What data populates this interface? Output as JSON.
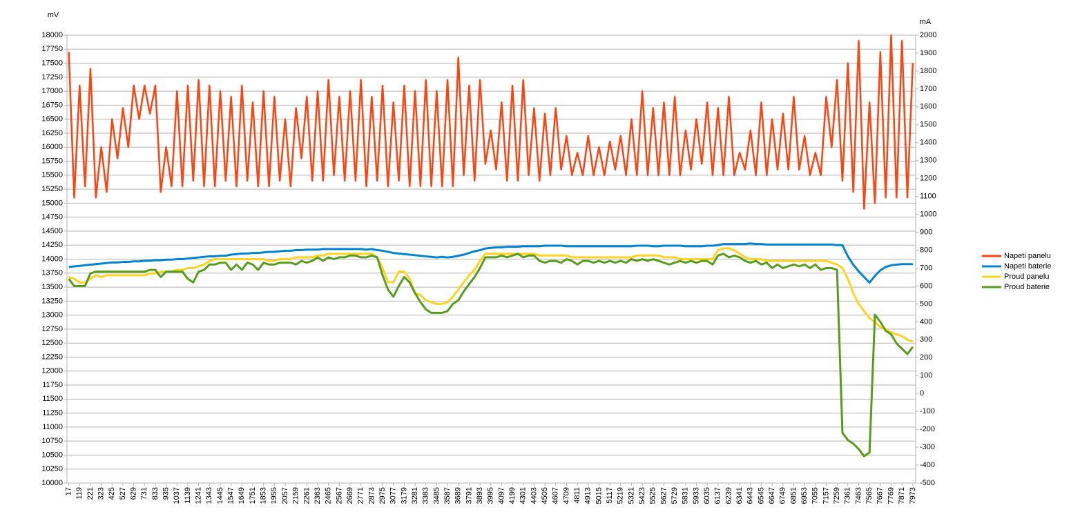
{
  "chart_data": {
    "type": "line",
    "y_label": "mV",
    "y2_label": "mA",
    "legend": "right",
    "grid": true,
    "xlim": [
      0,
      8000
    ],
    "xticks": [
      17,
      119,
      221,
      323,
      425,
      527,
      629,
      731,
      833,
      935,
      1037,
      1139,
      1241,
      1343,
      1445,
      1547,
      1649,
      1751,
      1853,
      1955,
      2057,
      2159,
      2261,
      2363,
      2465,
      2567,
      2669,
      2771,
      2873,
      2975,
      3077,
      3179,
      3281,
      3383,
      3485,
      3587,
      3689,
      3791,
      3893,
      3995,
      4097,
      4199,
      4301,
      4403,
      4505,
      4607,
      4709,
      4811,
      4913,
      5015,
      5117,
      5219,
      5321,
      5423,
      5525,
      5627,
      5729,
      5831,
      5933,
      6035,
      6137,
      6239,
      6341,
      6443,
      6545,
      6647,
      6749,
      6851,
      6953,
      7055,
      7157,
      7259,
      7361,
      7463,
      7565,
      7667,
      7769,
      7871,
      7973
    ],
    "ylim": [
      10000,
      18000
    ],
    "yticks": [
      10000,
      10250,
      10500,
      10750,
      11000,
      11250,
      11500,
      11750,
      12000,
      12250,
      12500,
      12750,
      13000,
      13250,
      13500,
      13750,
      14000,
      14250,
      14500,
      14750,
      15000,
      15250,
      15500,
      15750,
      16000,
      16250,
      16500,
      16750,
      17000,
      17250,
      17500,
      17750,
      18000
    ],
    "y2lim": [
      -500,
      2000
    ],
    "y2ticks": [
      -500,
      -400,
      -300,
      -200,
      -100,
      0,
      100,
      200,
      300,
      400,
      500,
      600,
      700,
      800,
      900,
      1000,
      1100,
      1200,
      1300,
      1400,
      1500,
      1600,
      1700,
      1800,
      1900,
      2000
    ],
    "x": [
      17,
      68,
      119,
      170,
      221,
      272,
      323,
      374,
      425,
      476,
      527,
      578,
      629,
      680,
      731,
      782,
      833,
      884,
      935,
      986,
      1037,
      1088,
      1139,
      1190,
      1241,
      1292,
      1343,
      1394,
      1445,
      1496,
      1547,
      1598,
      1649,
      1700,
      1751,
      1802,
      1853,
      1904,
      1955,
      2006,
      2057,
      2108,
      2159,
      2210,
      2261,
      2312,
      2363,
      2414,
      2465,
      2516,
      2567,
      2618,
      2669,
      2720,
      2771,
      2822,
      2873,
      2924,
      2975,
      3026,
      3077,
      3128,
      3179,
      3230,
      3281,
      3332,
      3383,
      3434,
      3485,
      3536,
      3587,
      3638,
      3689,
      3740,
      3791,
      3842,
      3893,
      3944,
      3995,
      4046,
      4097,
      4148,
      4199,
      4250,
      4301,
      4352,
      4403,
      4454,
      4505,
      4556,
      4607,
      4658,
      4709,
      4760,
      4811,
      4862,
      4913,
      4964,
      5015,
      5066,
      5117,
      5168,
      5219,
      5270,
      5321,
      5372,
      5423,
      5474,
      5525,
      5576,
      5627,
      5678,
      5729,
      5780,
      5831,
      5882,
      5933,
      5984,
      6035,
      6086,
      6137,
      6188,
      6239,
      6290,
      6341,
      6392,
      6443,
      6494,
      6545,
      6596,
      6647,
      6698,
      6749,
      6800,
      6851,
      6902,
      6953,
      7004,
      7055,
      7106,
      7157,
      7208,
      7259,
      7310,
      7361,
      7412,
      7463,
      7514,
      7565,
      7616,
      7667,
      7718,
      7769,
      7820,
      7871,
      7922,
      7973
    ],
    "series": [
      {
        "name": "Napeti panelu",
        "color": "#ff420e",
        "values": [
          17700,
          15100,
          17100,
          15300,
          17400,
          15100,
          16000,
          15200,
          16500,
          15800,
          16700,
          16000,
          17100,
          16500,
          17100,
          16600,
          17100,
          15200,
          16000,
          15300,
          17000,
          15300,
          17100,
          15400,
          17200,
          15300,
          17100,
          15300,
          17000,
          15400,
          16900,
          15300,
          17100,
          15400,
          16800,
          15300,
          17000,
          15300,
          16900,
          15400,
          16500,
          15300,
          16700,
          15800,
          16900,
          15400,
          17000,
          15400,
          17200,
          15500,
          16900,
          15400,
          17000,
          15400,
          17200,
          15300,
          16900,
          15400,
          17100,
          15300,
          16800,
          15400,
          17100,
          15300,
          17000,
          15300,
          17200,
          15300,
          17000,
          15300,
          17200,
          15300,
          17600,
          15500,
          17100,
          15400,
          17200,
          15700,
          16300,
          15600,
          16800,
          15400,
          17100,
          15400,
          17200,
          15500,
          16700,
          15400,
          16600,
          15500,
          16700,
          15600,
          16200,
          15500,
          15900,
          15500,
          16200,
          15500,
          16000,
          15500,
          16100,
          15600,
          16200,
          15500,
          16500,
          15500,
          17000,
          15500,
          16700,
          15500,
          16800,
          15500,
          16900,
          15500,
          16300,
          15600,
          16500,
          15700,
          16800,
          15500,
          16700,
          15500,
          16900,
          15500,
          15900,
          15600,
          16300,
          15500,
          16800,
          15500,
          16500,
          15600,
          16600,
          15600,
          16900,
          15600,
          16200,
          15500,
          15900,
          15500,
          16900,
          16000,
          17200,
          15400,
          17500,
          15200,
          17900,
          14900,
          16800,
          15000,
          17700,
          15100,
          18000,
          15100,
          17900,
          15100,
          17500
        ]
      },
      {
        "name": "Napeti baterie",
        "color": "#0084d1",
        "values": [
          13860,
          13870,
          13880,
          13890,
          13900,
          13910,
          13920,
          13930,
          13940,
          13940,
          13950,
          13950,
          13960,
          13960,
          13970,
          13970,
          13980,
          13980,
          13990,
          13990,
          14000,
          14000,
          14010,
          14020,
          14030,
          14040,
          14050,
          14050,
          14060,
          14060,
          14080,
          14090,
          14100,
          14100,
          14110,
          14110,
          14120,
          14130,
          14130,
          14140,
          14150,
          14150,
          14160,
          14160,
          14170,
          14170,
          14170,
          14180,
          14180,
          14180,
          14180,
          14180,
          14180,
          14180,
          14180,
          14170,
          14180,
          14160,
          14150,
          14130,
          14110,
          14100,
          14090,
          14080,
          14070,
          14060,
          14050,
          14040,
          14030,
          14040,
          14030,
          14040,
          14060,
          14080,
          14110,
          14140,
          14160,
          14190,
          14200,
          14210,
          14210,
          14220,
          14220,
          14220,
          14230,
          14230,
          14230,
          14230,
          14240,
          14240,
          14240,
          14240,
          14230,
          14230,
          14230,
          14230,
          14230,
          14230,
          14230,
          14230,
          14230,
          14230,
          14230,
          14230,
          14230,
          14240,
          14240,
          14240,
          14230,
          14230,
          14240,
          14240,
          14240,
          14240,
          14230,
          14230,
          14230,
          14230,
          14240,
          14240,
          14250,
          14270,
          14270,
          14270,
          14270,
          14270,
          14280,
          14270,
          14270,
          14260,
          14260,
          14260,
          14260,
          14260,
          14260,
          14260,
          14260,
          14260,
          14260,
          14260,
          14260,
          14260,
          14250,
          14250,
          14050,
          13900,
          13780,
          13680,
          13580,
          13700,
          13800,
          13860,
          13890,
          13900,
          13910,
          13910,
          13910
        ]
      },
      {
        "name": "Proud panelu",
        "color": "#ffd320",
        "axis": "y2",
        "values": [
          650,
          640,
          620,
          620,
          640,
          660,
          650,
          660,
          660,
          660,
          660,
          660,
          660,
          660,
          660,
          670,
          670,
          680,
          680,
          680,
          690,
          690,
          700,
          700,
          710,
          720,
          740,
          750,
          750,
          750,
          750,
          750,
          750,
          750,
          750,
          750,
          750,
          740,
          740,
          750,
          750,
          750,
          760,
          760,
          760,
          760,
          770,
          770,
          780,
          780,
          780,
          780,
          780,
          780,
          780,
          780,
          780,
          760,
          700,
          620,
          620,
          680,
          680,
          640,
          560,
          550,
          520,
          510,
          500,
          500,
          510,
          540,
          580,
          620,
          660,
          690,
          740,
          780,
          780,
          780,
          780,
          780,
          780,
          780,
          780,
          780,
          780,
          770,
          770,
          770,
          770,
          770,
          770,
          760,
          760,
          760,
          760,
          760,
          760,
          760,
          760,
          760,
          760,
          760,
          760,
          770,
          770,
          770,
          770,
          770,
          760,
          760,
          760,
          750,
          750,
          750,
          750,
          750,
          750,
          750,
          800,
          810,
          810,
          800,
          780,
          760,
          750,
          750,
          750,
          740,
          740,
          740,
          740,
          740,
          740,
          740,
          740,
          740,
          740,
          740,
          740,
          730,
          720,
          700,
          640,
          560,
          500,
          460,
          420,
          400,
          370,
          360,
          340,
          330,
          320,
          300,
          290
        ]
      },
      {
        "name": "Proud baterie",
        "color": "#579d1c",
        "axis": "y2",
        "values": [
          640,
          600,
          600,
          600,
          670,
          680,
          680,
          680,
          680,
          680,
          680,
          680,
          680,
          680,
          680,
          690,
          690,
          650,
          680,
          680,
          680,
          680,
          640,
          620,
          680,
          690,
          720,
          720,
          730,
          730,
          690,
          720,
          690,
          730,
          720,
          690,
          730,
          720,
          720,
          730,
          730,
          730,
          720,
          740,
          730,
          740,
          760,
          740,
          760,
          750,
          760,
          760,
          770,
          770,
          760,
          760,
          770,
          760,
          660,
          580,
          540,
          600,
          650,
          620,
          560,
          510,
          470,
          450,
          450,
          450,
          460,
          500,
          520,
          570,
          610,
          650,
          700,
          760,
          760,
          760,
          770,
          760,
          770,
          780,
          760,
          770,
          770,
          740,
          730,
          740,
          740,
          730,
          750,
          740,
          720,
          740,
          740,
          730,
          740,
          730,
          740,
          730,
          740,
          730,
          750,
          740,
          750,
          740,
          750,
          740,
          730,
          720,
          730,
          740,
          730,
          740,
          730,
          740,
          740,
          720,
          770,
          780,
          760,
          770,
          760,
          740,
          730,
          740,
          720,
          730,
          700,
          720,
          700,
          710,
          720,
          710,
          720,
          700,
          720,
          690,
          700,
          700,
          690,
          -220,
          -260,
          -280,
          -310,
          -350,
          -330,
          440,
          400,
          350,
          330,
          280,
          250,
          220,
          260
        ]
      }
    ]
  }
}
